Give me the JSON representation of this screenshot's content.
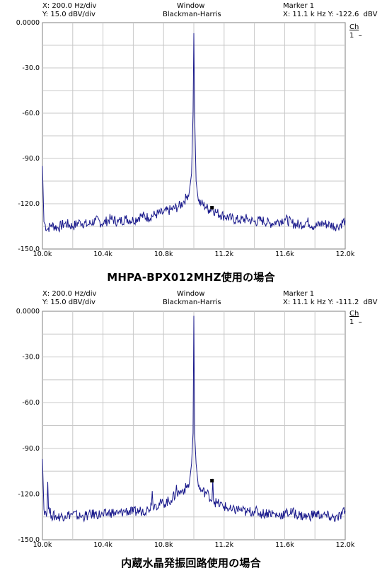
{
  "chart_data": [
    {
      "type": "line",
      "header": {
        "x_scale": "X: 200.0 Hz/div",
        "y_scale": "Y: 15.0 dBV/div",
        "window_label": "Window",
        "window_type": "Blackman-Harris",
        "marker_label": "Marker 1",
        "marker_readout": "X: 11.1 k Hz Y: -122.6  dBV",
        "channel_label": "Ch",
        "channel_value": "1  –"
      },
      "caption": "MHPA-BPX012MHZ使用の場合",
      "xlim": [
        10000,
        12000
      ],
      "ylim": [
        -150,
        0
      ],
      "x_ticks": [
        10000,
        10400,
        10800,
        11200,
        11600,
        12000
      ],
      "x_tick_labels": [
        "10.0k",
        "10.4k",
        "10.8k",
        "11.2k",
        "11.6k",
        "12.0k"
      ],
      "y_ticks": [
        0,
        -30,
        -60,
        -90,
        -120,
        -150
      ],
      "y_tick_labels": [
        "0.0000",
        "-30.0",
        "-60.0",
        "-90.0",
        "-120.0",
        "-150.0"
      ],
      "grid": true,
      "marker": {
        "x": 11120,
        "y": -122.6
      },
      "series": [
        {
          "color": "#1a1a8c",
          "x": [
            10000,
            10010,
            10030,
            10060,
            10100,
            10150,
            10200,
            10250,
            10300,
            10350,
            10400,
            10450,
            10500,
            10550,
            10600,
            10650,
            10700,
            10750,
            10800,
            10850,
            10900,
            10930,
            10950,
            10970,
            10985,
            10995,
            11000,
            11005,
            11015,
            11030,
            11050,
            11080,
            11100,
            11120,
            11150,
            11200,
            11250,
            11300,
            11350,
            11400,
            11450,
            11500,
            11550,
            11600,
            11650,
            11700,
            11750,
            11800,
            11850,
            11900,
            11950,
            12000
          ],
          "y": [
            -95,
            -132,
            -137,
            -134,
            -136,
            -133,
            -135,
            -132,
            -134,
            -131,
            -133,
            -130,
            -132,
            -130,
            -131,
            -128,
            -129,
            -127,
            -126,
            -124,
            -122,
            -119,
            -116,
            -112,
            -100,
            -60,
            -7,
            -60,
            -105,
            -118,
            -120,
            -122,
            -124,
            -123,
            -126,
            -128,
            -130,
            -131,
            -130,
            -132,
            -131,
            -133,
            -132,
            -130,
            -133,
            -134,
            -132,
            -135,
            -133,
            -134,
            -135,
            -131
          ]
        }
      ]
    },
    {
      "type": "line",
      "header": {
        "x_scale": "X: 200.0 Hz/div",
        "y_scale": "Y: 15.0 dBV/div",
        "window_label": "Window",
        "window_type": "Blackman-Harris",
        "marker_label": "Marker 1",
        "marker_readout": "X: 11.1 k Hz Y: -111.2  dBV",
        "channel_label": "Ch",
        "channel_value": "1  –"
      },
      "caption": "内蔵水晶発振回路使用の場合",
      "xlim": [
        10000,
        12000
      ],
      "ylim": [
        -150,
        0
      ],
      "x_ticks": [
        10000,
        10400,
        10800,
        11200,
        11600,
        12000
      ],
      "x_tick_labels": [
        "10.0k",
        "10.4k",
        "10.8k",
        "11.2k",
        "11.6k",
        "12.0k"
      ],
      "y_ticks": [
        0,
        -30,
        -60,
        -90,
        -120,
        -150
      ],
      "y_tick_labels": [
        "0.0000",
        "-30.0",
        "-60.0",
        "-90.0",
        "-120.0",
        "-150.0"
      ],
      "grid": true,
      "marker": {
        "x": 11120,
        "y": -111.2
      },
      "series": [
        {
          "color": "#1a1a8c",
          "x": [
            10000,
            10010,
            10030,
            10035,
            10040,
            10060,
            10100,
            10150,
            10200,
            10250,
            10300,
            10350,
            10400,
            10450,
            10500,
            10550,
            10600,
            10650,
            10700,
            10720,
            10725,
            10730,
            10750,
            10800,
            10850,
            10880,
            10885,
            10890,
            10920,
            10950,
            10970,
            10985,
            10995,
            11000,
            11005,
            11015,
            11030,
            11050,
            11080,
            11100,
            11120,
            11125,
            11130,
            11150,
            11200,
            11250,
            11300,
            11350,
            11400,
            11450,
            11500,
            11550,
            11600,
            11650,
            11700,
            11750,
            11800,
            11850,
            11900,
            11950,
            12000
          ],
          "y": [
            -97,
            -130,
            -132,
            -112,
            -130,
            -134,
            -135,
            -134,
            -133,
            -135,
            -134,
            -133,
            -134,
            -132,
            -133,
            -131,
            -132,
            -131,
            -130,
            -127,
            -118,
            -127,
            -127,
            -126,
            -124,
            -120,
            -114,
            -120,
            -118,
            -116,
            -113,
            -100,
            -80,
            -3,
            -80,
            -100,
            -115,
            -118,
            -119,
            -121,
            -124,
            -110,
            -124,
            -126,
            -128,
            -131,
            -130,
            -132,
            -131,
            -133,
            -132,
            -134,
            -133,
            -132,
            -134,
            -135,
            -133,
            -134,
            -135,
            -136,
            -131
          ]
        }
      ]
    }
  ]
}
